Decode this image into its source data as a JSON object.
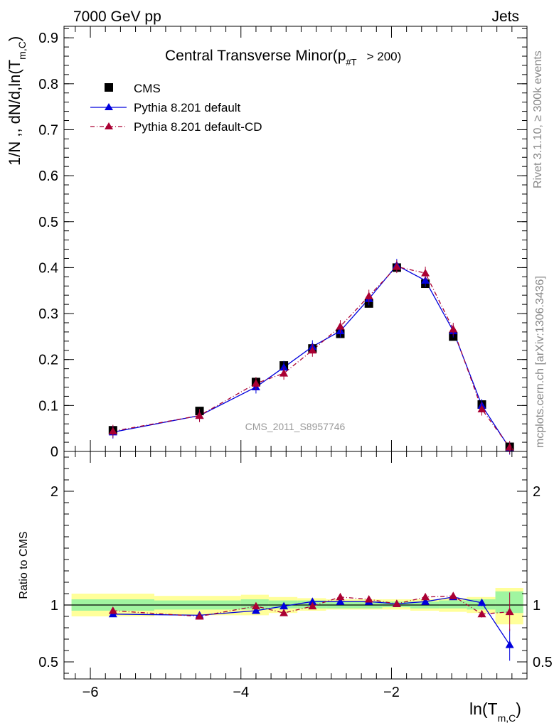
{
  "header": {
    "left": "7000 GeV pp",
    "right": "Jets"
  },
  "side_notes": {
    "rivet": "Rivet 3.1.10, ≥ 300k events",
    "mcplots": "mcplots.cern.ch [arXiv:1306.3436]"
  },
  "colors": {
    "cms": "#000000",
    "pythia_default": "#0000dd",
    "pythia_cd": "#aa0033",
    "band_inner": "#a0f5a0",
    "band_outer": "#ffff9a"
  },
  "chart_data": [
    {
      "type": "scatter",
      "panel": "main",
      "title": "Central Transverse Minor(p",
      "title_sub": "#T",
      "title_tail": "> 200)",
      "ylabel": "1/N ,, dN/d,ln(T",
      "ylabel_sub": "m,C",
      "ylabel_tail": ")",
      "watermark": "CMS_2011_S8957746",
      "ylim": [
        0,
        0.925
      ],
      "yticks": [
        0,
        0.1,
        0.2,
        0.3,
        0.4,
        0.5,
        0.6,
        0.7,
        0.8,
        0.9
      ],
      "ytick_labels": [
        "0",
        "0.1",
        "0.2",
        "0.3",
        "0.4",
        "0.5",
        "0.6",
        "0.7",
        "0.8",
        "0.9"
      ],
      "legend_position": "top-left",
      "series": [
        {
          "name": "CMS",
          "marker": "square",
          "x": [
            -5.7,
            -4.55,
            -3.8,
            -3.43,
            -3.05,
            -2.68,
            -2.3,
            -1.93,
            -1.55,
            -1.18,
            -0.8,
            -0.43
          ],
          "y": [
            0.046,
            0.088,
            0.151,
            0.187,
            0.224,
            0.256,
            0.322,
            0.4,
            0.365,
            0.25,
            0.102,
            0.01
          ]
        },
        {
          "name": "Pythia 8.201 default",
          "marker": "triangle",
          "line": "solid",
          "x": [
            -5.7,
            -4.55,
            -3.8,
            -3.43,
            -3.05,
            -2.68,
            -2.3,
            -1.93,
            -1.55,
            -1.18,
            -0.8,
            -0.43
          ],
          "y": [
            0.042,
            0.078,
            0.14,
            0.183,
            0.228,
            0.262,
            0.332,
            0.405,
            0.372,
            0.262,
            0.1,
            0.007
          ]
        },
        {
          "name": "Pythia 8.201 default-CD",
          "marker": "triangle",
          "line": "dashdot",
          "x": [
            -5.7,
            -4.55,
            -3.8,
            -3.43,
            -3.05,
            -2.68,
            -2.3,
            -1.93,
            -1.55,
            -1.18,
            -0.8,
            -0.43
          ],
          "y": [
            0.044,
            0.078,
            0.148,
            0.17,
            0.22,
            0.272,
            0.338,
            0.402,
            0.388,
            0.266,
            0.092,
            0.009
          ]
        }
      ]
    },
    {
      "type": "scatter",
      "panel": "ratio",
      "ylabel": "Ratio to CMS",
      "xlabel": "ln(T",
      "xlabel_sub": "m,C",
      "xlabel_tail": ")",
      "xlim": [
        -6.35,
        -0.2
      ],
      "xticks": [
        -6,
        -4,
        -2
      ],
      "xtick_labels": [
        "−6",
        "−4",
        "−2"
      ],
      "ylim": [
        0.35,
        2.35
      ],
      "yticks": [
        0.5,
        1,
        2
      ],
      "ytick_labels": [
        "0.5",
        "1",
        "2"
      ],
      "bands": [
        {
          "x0": -6.25,
          "x1": -5.15,
          "inner": [
            0.95,
            1.05
          ],
          "outer": [
            0.9,
            1.1
          ]
        },
        {
          "x0": -5.15,
          "x1": -4.0,
          "inner": [
            0.96,
            1.04
          ],
          "outer": [
            0.91,
            1.08
          ]
        },
        {
          "x0": -4.0,
          "x1": -3.63,
          "inner": [
            0.96,
            1.05
          ],
          "outer": [
            0.91,
            1.09
          ]
        },
        {
          "x0": -3.63,
          "x1": -3.25,
          "inner": [
            0.97,
            1.04
          ],
          "outer": [
            0.93,
            1.07
          ]
        },
        {
          "x0": -3.25,
          "x1": -2.87,
          "inner": [
            0.97,
            1.04
          ],
          "outer": [
            0.95,
            1.06
          ]
        },
        {
          "x0": -2.87,
          "x1": -2.5,
          "inner": [
            0.97,
            1.03
          ],
          "outer": [
            0.96,
            1.05
          ]
        },
        {
          "x0": -2.5,
          "x1": -2.12,
          "inner": [
            0.97,
            1.03
          ],
          "outer": [
            0.96,
            1.05
          ]
        },
        {
          "x0": -2.12,
          "x1": -1.75,
          "inner": [
            0.98,
            1.03
          ],
          "outer": [
            0.96,
            1.05
          ]
        },
        {
          "x0": -1.75,
          "x1": -1.37,
          "inner": [
            0.97,
            1.03
          ],
          "outer": [
            0.95,
            1.05
          ]
        },
        {
          "x0": -1.37,
          "x1": -1.0,
          "inner": [
            0.97,
            1.04
          ],
          "outer": [
            0.94,
            1.06
          ]
        },
        {
          "x0": -1.0,
          "x1": -0.62,
          "inner": [
            0.96,
            1.05
          ],
          "outer": [
            0.93,
            1.07
          ]
        },
        {
          "x0": -0.62,
          "x1": -0.25,
          "inner": [
            0.93,
            1.12
          ],
          "outer": [
            0.83,
            1.15
          ]
        }
      ],
      "series": [
        {
          "name": "Pythia 8.201 default",
          "x": [
            -5.7,
            -4.55,
            -3.8,
            -3.43,
            -3.05,
            -2.68,
            -2.3,
            -1.93,
            -1.55,
            -1.18,
            -0.8,
            -0.43
          ],
          "y": [
            0.92,
            0.91,
            0.95,
            0.99,
            1.03,
            1.03,
            1.03,
            1.01,
            1.03,
            1.07,
            1.02,
            0.65
          ],
          "err": [
            0.02,
            0.02,
            0.02,
            0.02,
            0.02,
            0.02,
            0.02,
            0.02,
            0.02,
            0.02,
            0.03,
            0.14
          ]
        },
        {
          "name": "Pythia 8.201 default-CD",
          "x": [
            -5.7,
            -4.55,
            -3.8,
            -3.43,
            -3.05,
            -2.68,
            -2.3,
            -1.93,
            -1.55,
            -1.18,
            -0.8,
            -0.43
          ],
          "y": [
            0.95,
            0.9,
            0.99,
            0.93,
            0.99,
            1.07,
            1.05,
            1.01,
            1.07,
            1.08,
            0.92,
            0.94
          ],
          "err": [
            0.03,
            0.02,
            0.03,
            0.02,
            0.02,
            0.02,
            0.02,
            0.02,
            0.02,
            0.02,
            0.03,
            0.17
          ]
        }
      ]
    }
  ]
}
